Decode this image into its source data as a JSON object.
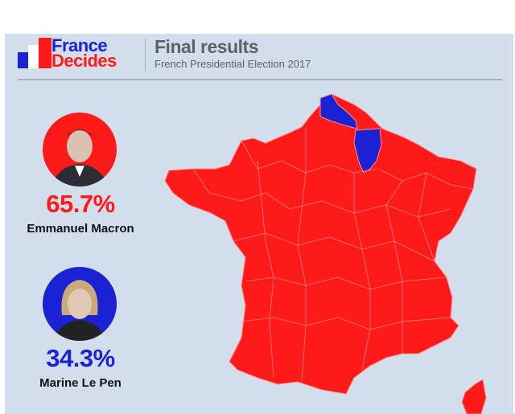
{
  "header": {
    "brand_line1": "France",
    "brand_line2": "Decides",
    "title": "Final results",
    "subtitle": "French Presidential Election 2017"
  },
  "candidates": [
    {
      "name": "Emmanuel Macron",
      "percent": "65.7%",
      "color": "#ff1a1a"
    },
    {
      "name": "Marine Le Pen",
      "percent": "34.3%",
      "color": "#1a22d4"
    }
  ],
  "map": {
    "winner_colors": {
      "Macron": "#ff1a1a",
      "Le Pen": "#1a22d4"
    }
  }
}
